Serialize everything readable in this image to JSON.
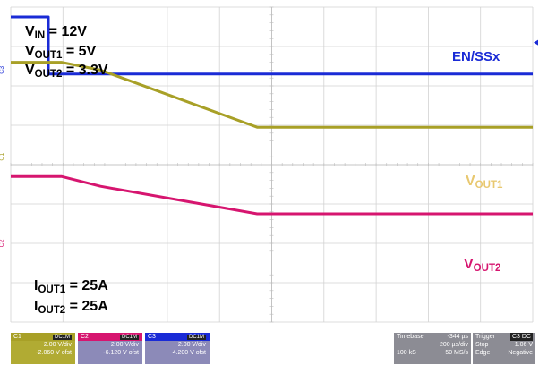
{
  "chart_data": {
    "type": "line",
    "title": "",
    "xlabel": "",
    "ylabel": "",
    "grid": true,
    "x_divisions": 10,
    "y_divisions": 8,
    "time_unit": "µs",
    "x": [
      -344,
      -200,
      -150,
      0,
      600,
      1656
    ],
    "series": [
      {
        "name": "EN/SSx",
        "color": "#1a2bd6",
        "values_div": [
          3.75,
          3.75,
          2.3,
          2.3,
          2.3,
          2.3
        ]
      },
      {
        "name": "VOUT1",
        "color": "#a8a027",
        "values_div": [
          2.6,
          2.6,
          2.6,
          2.4,
          0.95,
          0.95
        ]
      },
      {
        "name": "VOUT2",
        "color": "#d6156f",
        "values_div": [
          -0.3,
          -0.3,
          -0.3,
          -0.55,
          -1.25,
          -1.25
        ]
      }
    ]
  },
  "annotations": {
    "conditions": [
      {
        "main": "V",
        "sub": "IN",
        "tail": " = 12V"
      },
      {
        "main": "V",
        "sub": "OUT1",
        "tail": " = 5V"
      },
      {
        "main": "V",
        "sub": "OUT2",
        "tail": " = 3.3V"
      }
    ],
    "currents": [
      {
        "main": "I",
        "sub": "OUT1",
        "tail": " = 25A"
      },
      {
        "main": "I",
        "sub": "OUT2",
        "tail": " = 25A"
      }
    ],
    "en_label": "EN/SSx",
    "vout1_label": {
      "main": "V",
      "sub": "OUT1"
    },
    "vout2_label": {
      "main": "V",
      "sub": "OUT2"
    },
    "side_markers": [
      "C3",
      "C1",
      "C2"
    ]
  },
  "channels": [
    {
      "name": "C1",
      "coupling": "DC1M",
      "scale": "2.00 V/div",
      "offset": "-2.060 V ofst",
      "color": "#a8a027"
    },
    {
      "name": "C2",
      "coupling": "DC1M",
      "scale": "2.00 V/div",
      "offset": "-6.120 V ofst",
      "color": "#d6156f"
    },
    {
      "name": "C3",
      "coupling": "DC1M",
      "scale": "2.00 V/div",
      "offset": "4.200 V ofst",
      "color": "#1a2bd6"
    }
  ],
  "timebase": {
    "label": "Timebase",
    "position": "-344 µs",
    "per_div": "200 µs/div",
    "samples": "100 kS",
    "rate": "50 MS/s"
  },
  "trigger": {
    "label": "Trigger",
    "source": "C3 DC",
    "mode": "Stop",
    "level": "1.06 V",
    "type": "Edge",
    "slope": "Negative"
  }
}
